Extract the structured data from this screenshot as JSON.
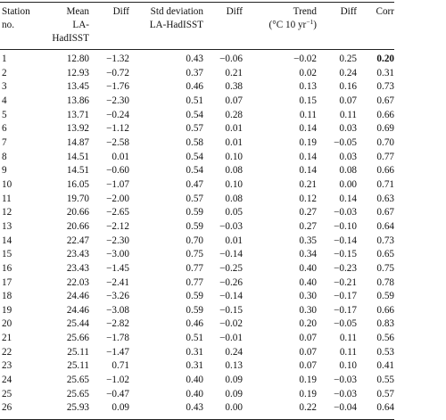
{
  "table": {
    "header": [
      [
        "Station",
        "no."
      ],
      [
        "Mean",
        "LA-HadISST"
      ],
      [
        "Diff"
      ],
      [
        "Std deviation",
        "LA-HadISST"
      ],
      [
        "Diff"
      ],
      [
        "Trend",
        {
          "text": "(°C 10 yr",
          "sup": "−1",
          "end": ")"
        }
      ],
      [
        "Diff"
      ],
      [
        "Corr"
      ]
    ],
    "rows": [
      [
        "1",
        "12.80",
        "−1.32",
        "0.43",
        "−0.06",
        "−0.02",
        "0.25",
        "0.20"
      ],
      [
        "2",
        "12.93",
        "−0.72",
        "0.37",
        "0.21",
        "0.02",
        "0.24",
        "0.31"
      ],
      [
        "3",
        "13.45",
        "−1.76",
        "0.46",
        "0.38",
        "0.13",
        "0.16",
        "0.73"
      ],
      [
        "4",
        "13.86",
        "−2.30",
        "0.51",
        "0.07",
        "0.15",
        "0.07",
        "0.67"
      ],
      [
        "5",
        "13.71",
        "−0.24",
        "0.54",
        "0.28",
        "0.11",
        "0.11",
        "0.66"
      ],
      [
        "6",
        "13.92",
        "−1.12",
        "0.57",
        "0.01",
        "0.14",
        "0.03",
        "0.69"
      ],
      [
        "7",
        "14.87",
        "−2.58",
        "0.58",
        "0.01",
        "0.19",
        "−0.05",
        "0.70"
      ],
      [
        "8",
        "14.51",
        "0.01",
        "0.54",
        "0.10",
        "0.14",
        "0.03",
        "0.77"
      ],
      [
        "9",
        "14.51",
        "−0.60",
        "0.54",
        "0.08",
        "0.14",
        "0.08",
        "0.66"
      ],
      [
        "10",
        "16.05",
        "−1.07",
        "0.47",
        "0.10",
        "0.21",
        "0.00",
        "0.71"
      ],
      [
        "11",
        "19.70",
        "−2.00",
        "0.57",
        "0.08",
        "0.12",
        "0.14",
        "0.63"
      ],
      [
        "12",
        "20.66",
        "−2.65",
        "0.59",
        "0.05",
        "0.27",
        "−0.03",
        "0.67"
      ],
      [
        "13",
        "20.66",
        "−2.12",
        "0.59",
        "−0.03",
        "0.27",
        "−0.10",
        "0.64"
      ],
      [
        "14",
        "22.47",
        "−2.30",
        "0.70",
        "0.01",
        "0.35",
        "−0.14",
        "0.73"
      ],
      [
        "15",
        "23.43",
        "−3.00",
        "0.75",
        "−0.14",
        "0.34",
        "−0.15",
        "0.65"
      ],
      [
        "16",
        "23.43",
        "−1.45",
        "0.77",
        "−0.25",
        "0.40",
        "−0.23",
        "0.75"
      ],
      [
        "17",
        "22.03",
        "−2.41",
        "0.77",
        "−0.26",
        "0.40",
        "−0.21",
        "0.78"
      ],
      [
        "18",
        "24.46",
        "−3.26",
        "0.59",
        "−0.14",
        "0.30",
        "−0.17",
        "0.59"
      ],
      [
        "19",
        "24.46",
        "−3.08",
        "0.59",
        "−0.15",
        "0.30",
        "−0.17",
        "0.66"
      ],
      [
        "20",
        "25.44",
        "−2.82",
        "0.46",
        "−0.02",
        "0.20",
        "−0.05",
        "0.83"
      ],
      [
        "21",
        "25.66",
        "−1.78",
        "0.51",
        "−0.01",
        "0.07",
        "0.11",
        "0.56"
      ],
      [
        "22",
        "25.11",
        "−1.47",
        "0.31",
        "0.24",
        "0.07",
        "0.11",
        "0.53"
      ],
      [
        "23",
        "25.11",
        "0.71",
        "0.31",
        "0.13",
        "0.07",
        "0.10",
        "0.41"
      ],
      [
        "24",
        "25.65",
        "−1.02",
        "0.40",
        "0.09",
        "0.19",
        "−0.03",
        "0.55"
      ],
      [
        "25",
        "25.65",
        "−0.47",
        "0.40",
        "0.09",
        "0.19",
        "−0.03",
        "0.57"
      ],
      [
        "26",
        "25.93",
        "0.09",
        "0.43",
        "0.00",
        "0.22",
        "−0.04",
        "0.64"
      ]
    ]
  }
}
